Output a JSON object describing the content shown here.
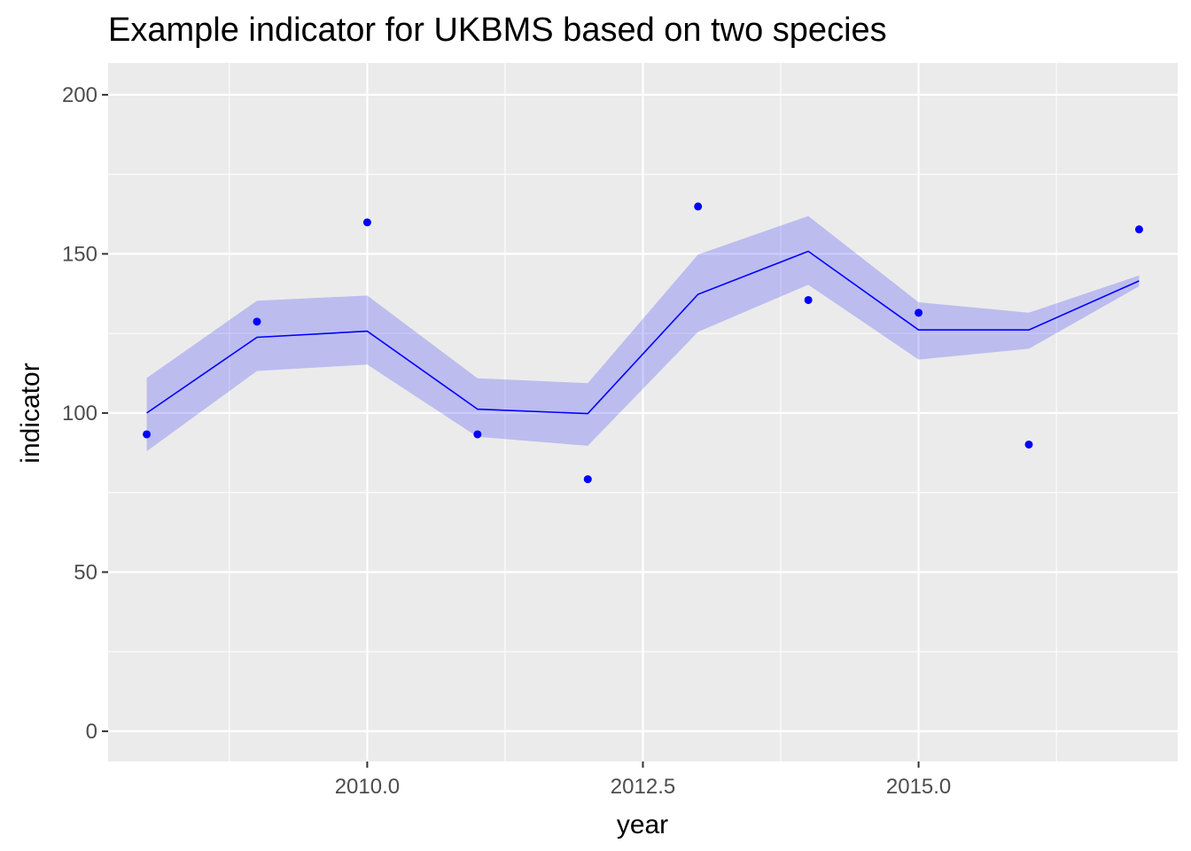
{
  "chart_data": {
    "type": "line",
    "title": "Example indicator for UKBMS based on two species",
    "xlabel": "year",
    "ylabel": "indicator",
    "xlim": [
      2007.65,
      2017.35
    ],
    "ylim": [
      -9.5,
      210
    ],
    "x_ticks": [
      2010.0,
      2012.5,
      2015.0
    ],
    "x_tick_labels": [
      "2010.0",
      "2012.5",
      "2015.0"
    ],
    "y_ticks": [
      0,
      50,
      100,
      150,
      200
    ],
    "y_tick_labels": [
      "0",
      "50",
      "100",
      "150",
      "200"
    ],
    "grid": true,
    "legend": "none",
    "x": [
      2008,
      2009,
      2010,
      2011,
      2012,
      2013,
      2014,
      2015,
      2016,
      2017
    ],
    "line": [
      100,
      123.8,
      125.7,
      101.2,
      99.8,
      137.3,
      150.8,
      126.1,
      126.1,
      141.5
    ],
    "lower": [
      88,
      113.2,
      115.2,
      92.5,
      89.7,
      125.5,
      140.3,
      116.8,
      120.2,
      139.8
    ],
    "upper": [
      111,
      135.3,
      136.9,
      110.9,
      109.4,
      149.8,
      161.9,
      134.8,
      131.5,
      143.2
    ],
    "points": [
      93.3,
      128.7,
      159.9,
      93.3,
      79.2,
      164.9,
      135.5,
      131.5,
      90.1,
      157.7
    ],
    "colors": {
      "panel": "#ebebeb",
      "grid": "#ffffff",
      "line": "#0000ff",
      "points": "#0000ff",
      "ribbon": "#0000ff",
      "ribbon_opacity": 0.2
    }
  }
}
